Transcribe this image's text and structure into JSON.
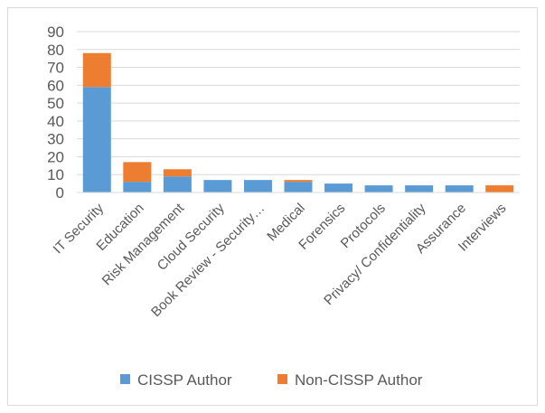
{
  "chart_data": {
    "type": "bar",
    "stacked": true,
    "categories": [
      "IT Security",
      "Education",
      "Risk Management",
      "Cloud Security",
      "Book Review - Security…",
      "Medical",
      "Forensics",
      "Protocols",
      "Privacy/ Confidentiality",
      "Assurance",
      "Interviews"
    ],
    "series": [
      {
        "name": "CISSP Author",
        "color": "#5b9bd5",
        "values": [
          59,
          6,
          9,
          7,
          7,
          6,
          5,
          4,
          4,
          4,
          0
        ]
      },
      {
        "name": "Non-CISSP Author",
        "color": "#ed7d31",
        "values": [
          19,
          11,
          4,
          0,
          0,
          1,
          0,
          0,
          0,
          0,
          4
        ]
      }
    ],
    "ylim": [
      0,
      90
    ],
    "yticks": [
      0,
      10,
      20,
      30,
      40,
      50,
      60,
      70,
      80,
      90
    ],
    "grid": true,
    "legend": "bottom",
    "title": "",
    "xlabel": "",
    "ylabel": ""
  }
}
